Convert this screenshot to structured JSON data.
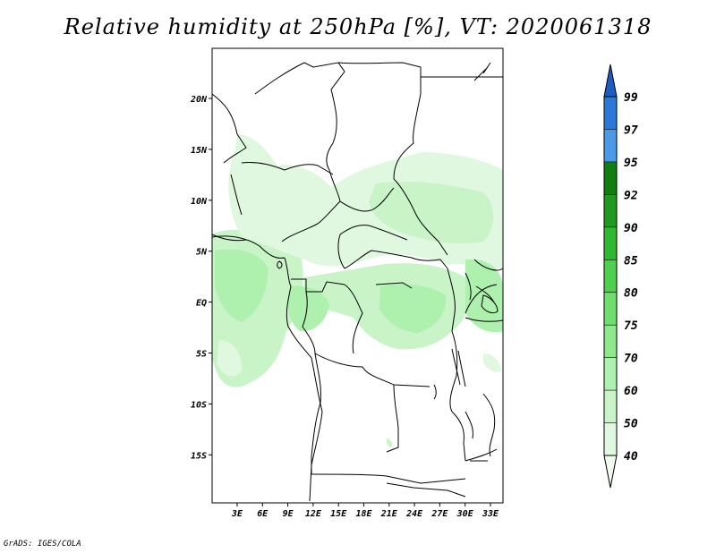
{
  "title": "Relative humidity at 250hPa [%], VT: 2020061318",
  "credit": "GrADS: IGES/COLA",
  "map": {
    "variable": "Relative humidity",
    "level": "250hPa",
    "units": "%",
    "valid_time": "2020061318",
    "lat_ticks": [
      "20N",
      "15N",
      "10N",
      "5N",
      "EQ",
      "5S",
      "10S",
      "15S"
    ],
    "lon_ticks": [
      "3E",
      "6E",
      "9E",
      "12E",
      "15E",
      "18E",
      "21E",
      "24E",
      "27E",
      "30E",
      "33E"
    ]
  },
  "colorbar": {
    "labels": [
      "40",
      "50",
      "60",
      "70",
      "75",
      "80",
      "85",
      "90",
      "92",
      "95",
      "97",
      "99"
    ],
    "colors": [
      "#f0fcf0",
      "#e0f8e0",
      "#c8f4c8",
      "#aef0ae",
      "#8ee88e",
      "#6ede6e",
      "#4ed04e",
      "#30b830",
      "#1f9a1f",
      "#0f7f0f",
      "#4a9ae8",
      "#2a78d8",
      "#1e5cc0"
    ]
  },
  "colors": {
    "land_outline": "#000000",
    "background": "#ffffff"
  }
}
